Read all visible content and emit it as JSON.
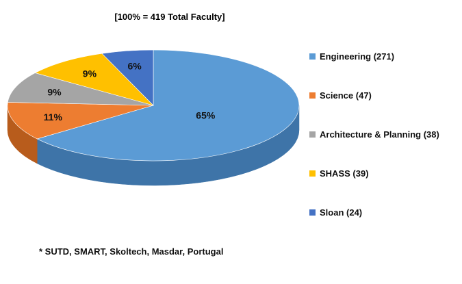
{
  "chart_data": {
    "type": "pie",
    "title": "[100% = 419 Total Faculty]",
    "slices": [
      {
        "label": "Engineering (271)",
        "value": 271,
        "percent_label": "65%",
        "color": "#5b9bd5",
        "side_color": "#3e74a8"
      },
      {
        "label": "Science (47)",
        "value": 47,
        "percent_label": "11%",
        "color": "#ed7d31",
        "side_color": "#b85c1c"
      },
      {
        "label": "Architecture & Planning (38)",
        "value": 38,
        "percent_label": "9%",
        "color": "#a5a5a5",
        "side_color": "#7a7a7a"
      },
      {
        "label": "SHASS (39)",
        "value": 39,
        "percent_label": "9%",
        "color": "#ffc000",
        "side_color": "#c99600"
      },
      {
        "label": "Sloan (24)",
        "value": 24,
        "percent_label": "6%",
        "color": "#4472c4",
        "side_color": "#2e5294"
      }
    ],
    "legend_position": "right",
    "style": "3d-pie"
  },
  "footnote": "* SUTD, SMART, Skoltech, Masdar, Portugal"
}
